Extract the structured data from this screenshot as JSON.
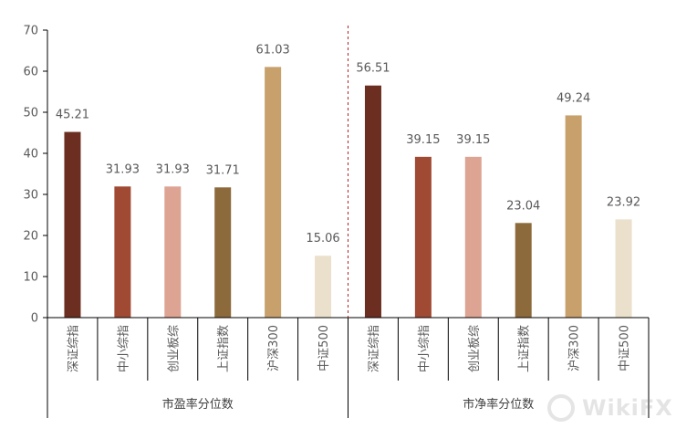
{
  "chart_data": {
    "type": "bar",
    "title": "",
    "xlabel": "",
    "ylabel": "",
    "ylim": [
      0,
      70
    ],
    "yticks": [
      0,
      10,
      20,
      30,
      40,
      50,
      60,
      70
    ],
    "grid": false,
    "groups": [
      {
        "label": "市盈率分位数",
        "categories": [
          "深证综指",
          "中小综指",
          "创业板综",
          "上证指数",
          "沪深300",
          "中证500"
        ],
        "values": [
          45.21,
          31.93,
          31.93,
          31.71,
          61.03,
          15.06
        ],
        "value_labels": [
          "45.21",
          "31.93",
          "31.93",
          "31.71",
          "61.03",
          "15.06"
        ]
      },
      {
        "label": "市净率分位数",
        "categories": [
          "深证综指",
          "中小综指",
          "创业板综",
          "上证指数",
          "沪深300",
          "中证500"
        ],
        "values": [
          56.51,
          39.15,
          39.15,
          23.04,
          49.24,
          23.92
        ],
        "value_labels": [
          "56.51",
          "39.15",
          "39.15",
          "23.04",
          "49.24",
          "23.92"
        ]
      }
    ],
    "colors": [
      "#6b2e21",
      "#a04a33",
      "#dda494",
      "#8c6a3c",
      "#c8a06c",
      "#ebe0cb"
    ],
    "divider_color": "#b22222"
  },
  "watermark": {
    "text": "WikiFX",
    "icon": "wikifx-logo-icon"
  }
}
